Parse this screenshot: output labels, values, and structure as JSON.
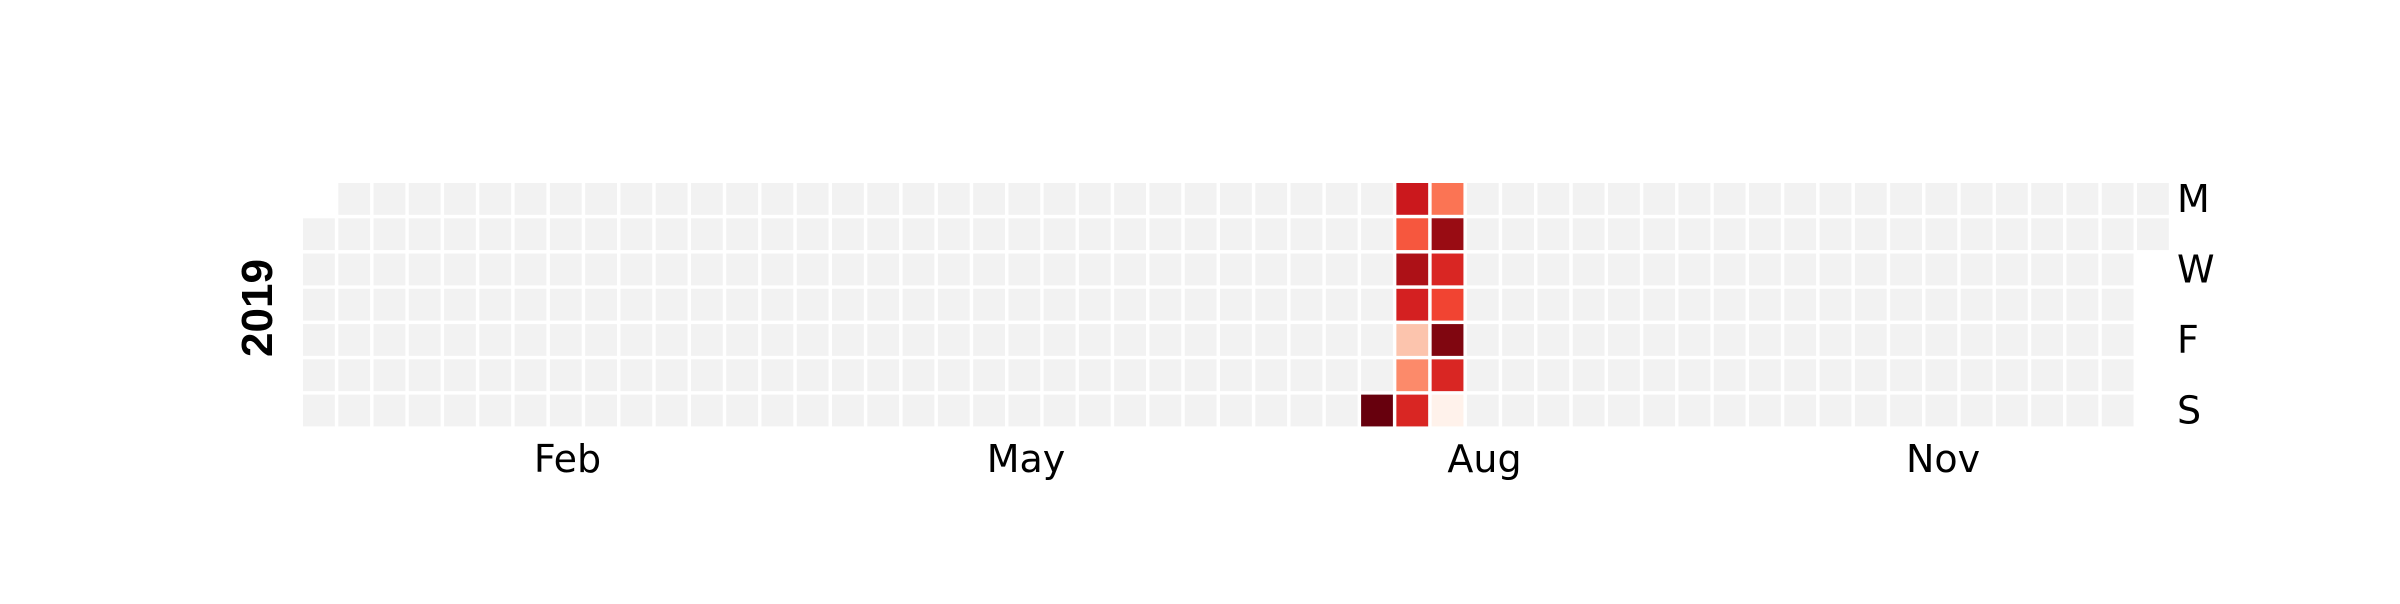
{
  "chart_data": {
    "type": "heatmap",
    "title": "",
    "year_label": "2019",
    "x_tick_labels": [
      "Feb",
      "May",
      "Aug",
      "Nov"
    ],
    "x_tick_weeks": [
      7,
      20,
      33,
      46
    ],
    "y_tick_labels": [
      "M",
      "W",
      "F",
      "S"
    ],
    "y_tick_days": [
      0,
      2,
      4,
      6
    ],
    "first_day_offset": 1,
    "days_in_year": 365,
    "empty_color": "#f2f2f2",
    "colormap": "Reds",
    "grid": false,
    "values": [
      {
        "date": "2019-08-04",
        "value": 1.0
      },
      {
        "date": "2019-08-05",
        "value": 0.75
      },
      {
        "date": "2019-08-06",
        "value": 0.55
      },
      {
        "date": "2019-08-07",
        "value": 0.85
      },
      {
        "date": "2019-08-08",
        "value": 0.72
      },
      {
        "date": "2019-08-09",
        "value": 0.22
      },
      {
        "date": "2019-08-10",
        "value": 0.4
      },
      {
        "date": "2019-08-11",
        "value": 0.7
      },
      {
        "date": "2019-08-12",
        "value": 0.47
      },
      {
        "date": "2019-08-13",
        "value": 0.9
      },
      {
        "date": "2019-08-14",
        "value": 0.7
      },
      {
        "date": "2019-08-15",
        "value": 0.6
      },
      {
        "date": "2019-08-16",
        "value": 0.95
      },
      {
        "date": "2019-08-17",
        "value": 0.7
      },
      {
        "date": "2019-08-18",
        "value": 0.02
      }
    ]
  }
}
